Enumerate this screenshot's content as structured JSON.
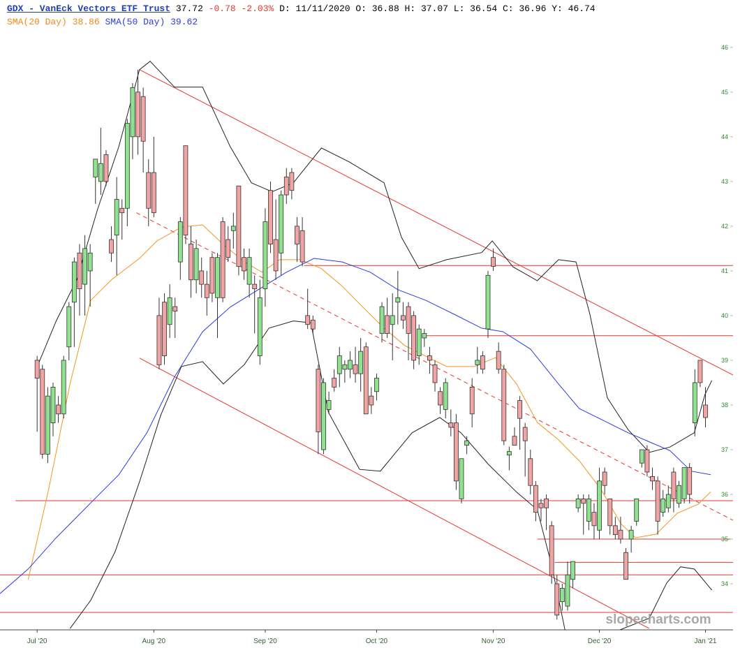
{
  "chart_data": {
    "type": "candlestick",
    "header": {
      "symbol": "GDX - VanEck Vectors ETF Trust",
      "price": "37.72",
      "change": "-0.78 -2.03%",
      "details": "D: 11/11/2020 O: 36.88 H: 37.07 L: 36.54 C: 36.96 Y: 46.74"
    },
    "watermark": "slopecharts.com",
    "up_color": "#8fe38f",
    "down_color": "#f2a3a3",
    "x": [
      0,
      1,
      2,
      3,
      4,
      5,
      6,
      7,
      8,
      9,
      10,
      11,
      12,
      13,
      14,
      15,
      16,
      17,
      18,
      19,
      20,
      21,
      22,
      23,
      24,
      25,
      26,
      27,
      28,
      29,
      30,
      31,
      32,
      33,
      34,
      35,
      36,
      37,
      38,
      39,
      40,
      41,
      42,
      43,
      44,
      45,
      46,
      47,
      48,
      49,
      50,
      51,
      52,
      53,
      54,
      55,
      56,
      57,
      58,
      59,
      60,
      61,
      62,
      63,
      64,
      65,
      66,
      67,
      68,
      69,
      70,
      71,
      72,
      73,
      74,
      75,
      76,
      77,
      78,
      79,
      80,
      81,
      82,
      83,
      84,
      85,
      86,
      87,
      88,
      89,
      90,
      91,
      92,
      93,
      94,
      95,
      96,
      97,
      98,
      99,
      100,
      101,
      102,
      103,
      104,
      105,
      106,
      107,
      108,
      109,
      110,
      111,
      112,
      113,
      114,
      115,
      116,
      117,
      118,
      119,
      120,
      121,
      122,
      123,
      124,
      125,
      126
    ],
    "open": [
      39.0,
      38.8,
      36.9,
      37.6,
      38.0,
      37.8,
      39.3,
      40.3,
      41.4,
      40.7,
      41.0,
      43.1,
      43.0,
      43.6,
      41.7,
      41.8,
      42.4,
      42.4,
      44.0,
      45.0,
      44.9,
      43.2,
      43.2,
      40.0,
      40.3,
      39.8,
      40.2,
      41.2,
      43.8,
      41.6,
      40.8,
      41.0,
      40.7,
      41.3,
      40.4,
      42.1,
      41.7,
      41.9,
      42.9,
      41.3,
      40.7,
      40.7,
      39.1,
      40.6,
      42.8,
      41.7,
      41.4,
      43.1,
      43.2,
      42.0,
      41.9,
      40.0,
      39.9,
      38.8,
      37.0,
      37.9,
      38.6,
      38.7,
      38.8,
      38.8,
      38.9,
      38.7,
      39.3,
      38.2,
      38.3,
      39.6,
      40.0,
      39.8,
      40.3,
      40.0,
      40.2,
      40.0,
      39.1,
      39.5,
      39.1,
      38.9,
      38.3,
      37.9,
      37.6,
      37.6,
      35.9,
      37.1,
      38.4,
      38.9,
      39.1,
      39.7,
      41.3,
      39.2,
      38.8,
      36.88,
      37.3,
      38.1,
      37.5,
      36.8,
      36.2,
      35.8,
      35.9,
      35.3,
      34.0,
      33.6,
      33.5,
      34.1,
      35.7,
      35.9,
      35.4,
      35.6,
      35.2,
      36.5,
      35.9,
      35.3,
      35.2,
      34.7,
      35.0,
      35.4,
      36.7,
      37.0,
      36.4,
      36.3,
      35.6,
      35.7,
      36.5,
      35.8,
      35.9,
      36.6,
      37.6,
      39.0,
      38.0
    ],
    "high": [
      39.1,
      38.9,
      38.4,
      38.5,
      38.2,
      39.1,
      40.3,
      41.3,
      41.6,
      41.8,
      41.6,
      43.5,
      44.2,
      43.7,
      42.0,
      43.1,
      42.6,
      44.4,
      45.2,
      45.5,
      45.1,
      43.5,
      44.0,
      40.4,
      40.5,
      40.7,
      40.4,
      42.2,
      43.8,
      42.0,
      41.7,
      41.3,
      41.0,
      41.4,
      41.4,
      42.2,
      42.0,
      42.3,
      42.9,
      41.5,
      41.5,
      40.9,
      40.8,
      42.4,
      43.0,
      42.6,
      42.8,
      43.3,
      43.3,
      42.2,
      42.2,
      40.6,
      40.0,
      38.9,
      38.6,
      38.3,
      38.8,
      39.3,
      39.0,
      39.2,
      39.3,
      39.5,
      39.4,
      38.4,
      38.7,
      40.3,
      40.4,
      40.5,
      41.0,
      40.3,
      40.3,
      40.1,
      39.8,
      39.7,
      39.3,
      39.0,
      38.4,
      38.6,
      37.9,
      37.8,
      36.8,
      37.3,
      38.6,
      39.3,
      39.2,
      41.0,
      41.5,
      39.4,
      38.9,
      37.07,
      37.5,
      38.2,
      37.6,
      37.0,
      36.3,
      35.9,
      36.0,
      35.4,
      34.2,
      34.0,
      34.5,
      34.5,
      36.0,
      36.0,
      36.0,
      35.8,
      36.6,
      36.6,
      35.9,
      35.5,
      35.5,
      34.8,
      35.3,
      35.9,
      37.0,
      37.1,
      36.6,
      36.4,
      36.1,
      36.2,
      36.6,
      36.3,
      36.6,
      36.7,
      38.8,
      39.0,
      38.4
    ],
    "low": [
      37.4,
      36.8,
      36.7,
      37.3,
      37.6,
      37.7,
      39.0,
      39.3,
      40.0,
      40.0,
      40.2,
      42.5,
      42.7,
      42.9,
      41.2,
      40.9,
      41.7,
      42.0,
      43.5,
      43.6,
      43.2,
      42.0,
      42.2,
      38.8,
      38.9,
      39.5,
      39.5,
      40.8,
      41.6,
      40.4,
      40.5,
      40.4,
      40.0,
      40.3,
      39.5,
      40.3,
      41.2,
      41.5,
      40.9,
      40.8,
      40.4,
      39.6,
      38.9,
      40.2,
      41.4,
      40.8,
      40.9,
      42.5,
      42.6,
      41.2,
      41.1,
      39.7,
      39.6,
      36.9,
      36.9,
      37.8,
      38.3,
      38.4,
      38.5,
      38.6,
      38.5,
      38.3,
      37.8,
      37.8,
      38.1,
      39.4,
      39.5,
      39.0,
      39.8,
      39.7,
      39.0,
      38.8,
      38.9,
      39.3,
      38.7,
      38.3,
      37.8,
      37.7,
      37.3,
      36.1,
      35.8,
      36.9,
      37.5,
      38.7,
      38.7,
      39.5,
      41.0,
      38.7,
      37.1,
      36.54,
      37.1,
      37.0,
      36.4,
      36.0,
      35.4,
      35.4,
      35.2,
      34.0,
      33.2,
      33.4,
      33.4,
      33.9,
      35.6,
      35.1,
      35.2,
      35.0,
      35.0,
      36.0,
      35.1,
      35.0,
      34.9,
      34.1,
      34.7,
      35.3,
      36.6,
      36.4,
      36.1,
      35.1,
      35.5,
      35.6,
      35.6,
      35.7,
      35.8,
      35.8,
      37.3,
      38.4,
      37.5
    ],
    "close": [
      38.6,
      36.9,
      38.2,
      38.4,
      37.8,
      39.0,
      40.2,
      41.2,
      40.6,
      41.5,
      41.4,
      43.5,
      43.4,
      43.0,
      41.4,
      42.6,
      42.3,
      44.3,
      45.1,
      44.0,
      43.9,
      42.4,
      42.3,
      38.9,
      39.1,
      40.4,
      40.1,
      42.1,
      41.8,
      40.8,
      41.5,
      40.7,
      40.4,
      40.5,
      41.3,
      40.4,
      41.3,
      42.0,
      41.1,
      41.0,
      41.3,
      40.6,
      40.4,
      42.1,
      41.6,
      41.0,
      42.7,
      42.7,
      42.8,
      41.6,
      41.2,
      39.8,
      39.7,
      37.4,
      38.5,
      38.1,
      38.4,
      39.1,
      38.9,
      39.0,
      38.7,
      39.2,
      37.8,
      38.0,
      38.6,
      40.2,
      39.6,
      40.0,
      40.4,
      39.9,
      39.6,
      39.0,
      39.7,
      39.6,
      39.0,
      38.5,
      38.0,
      38.5,
      37.5,
      36.3,
      36.8,
      37.2,
      37.8,
      39.0,
      38.8,
      40.9,
      41.1,
      38.8,
      37.2,
      36.96,
      37.1,
      37.7,
      37.2,
      36.2,
      35.6,
      35.7,
      35.7,
      34.2,
      33.3,
      33.9,
      34.2,
      34.5,
      35.9,
      35.8,
      35.9,
      35.3,
      36.3,
      36.2,
      35.3,
      35.1,
      35.0,
      34.1,
      35.2,
      35.9,
      37.0,
      36.5,
      36.3,
      35.4,
      35.9,
      36.0,
      35.9,
      36.2,
      36.6,
      36.0,
      38.5,
      38.5,
      37.72
    ],
    "indicators": [
      {
        "name": "SMA(20 Day)",
        "last": 38.86,
        "color": "#f7931e",
        "x": [
          -1.7,
          2.2,
          6.2,
          10.1,
          14.1,
          19.3,
          22.6,
          27.2,
          31.2,
          35.1,
          39.1,
          42.4,
          45.7,
          49.6,
          53.6,
          57.5,
          61.4,
          65.4,
          69.3,
          73.3,
          77.2,
          82.5,
          86.4,
          90.4,
          94.3,
          98.3,
          102.2,
          106.2,
          110.1,
          112.8,
          116.7,
          120.7,
          124.6,
          127.0
        ],
        "y": [
          34.09,
          36.13,
          38.47,
          40.34,
          40.81,
          41.28,
          41.67,
          41.98,
          42.03,
          41.59,
          41.2,
          40.97,
          41.25,
          41.25,
          41.05,
          40.66,
          40.19,
          39.72,
          39.33,
          39.09,
          38.86,
          38.86,
          39.06,
          38.47,
          37.61,
          37.22,
          36.75,
          36.13,
          35.34,
          35.03,
          35.11,
          35.58,
          35.78,
          36.06
        ]
      },
      {
        "name": "SMA(50 Day)",
        "last": 39.62,
        "color": "#2b3de0",
        "x": [
          -7.0,
          -1.7,
          3.6,
          10.1,
          15.4,
          20.7,
          25.9,
          31.2,
          36.4,
          41.7,
          47.0,
          52.2,
          57.5,
          62.8,
          68.0,
          73.3,
          78.6,
          83.8,
          87.8,
          93.0,
          98.3,
          102.2,
          107.5,
          111.4,
          116.1,
          119.3,
          123.3,
          127.0
        ],
        "y": [
          33.78,
          34.33,
          35.03,
          35.81,
          36.44,
          37.38,
          38.63,
          39.64,
          40.19,
          40.58,
          40.97,
          41.28,
          41.2,
          40.97,
          40.58,
          40.34,
          40.03,
          39.72,
          39.64,
          39.25,
          38.47,
          37.92,
          37.61,
          37.38,
          37.14,
          36.98,
          36.52,
          36.44
        ]
      }
    ],
    "bands": [
      {
        "color": "#222222",
        "x": [
          0.3,
          3.6,
          7.5,
          11.4,
          15.4,
          19.3,
          21.3,
          25.9,
          31.2,
          36.4,
          40.4,
          44.3,
          48.3,
          53.6,
          58.8,
          65.4,
          68.7,
          72.0,
          77.2,
          83.8,
          85.8,
          89.7,
          94.3,
          98.3,
          101.6,
          104.2,
          107.5,
          111.4,
          115.4,
          119.3,
          123.9,
          125.9,
          127.2
        ],
        "y": [
          38.94,
          39.88,
          40.81,
          42.38,
          43.78,
          45.5,
          45.69,
          45.11,
          45.11,
          43.78,
          42.97,
          42.77,
          42.97,
          43.75,
          43.44,
          42.97,
          41.75,
          41.05,
          41.25,
          41.41,
          41.67,
          41.09,
          40.78,
          41.25,
          41.2,
          40.03,
          38.16,
          37.45,
          36.94,
          37.06,
          37.38,
          38.23,
          38.55
        ]
      },
      {
        "color": "#222222",
        "x": [
          6.2,
          10.1,
          14.7,
          19.3,
          23.3,
          27.2,
          31.2,
          35.1,
          39.1,
          43.7,
          48.3,
          51.6,
          54.9,
          60.8,
          64.7,
          70.7,
          75.9,
          79.9,
          85.1,
          90.4,
          94.3,
          97.0,
          99.6,
          108.8,
          115.4,
          118.7,
          121.3,
          123.9,
          127.2
        ],
        "y": [
          33.0,
          33.63,
          34.72,
          36.28,
          37.77,
          38.86,
          38.97,
          38.47,
          38.91,
          39.72,
          39.88,
          39.84,
          37.84,
          36.56,
          36.52,
          37.38,
          37.72,
          37.38,
          36.67,
          36.05,
          35.66,
          34.41,
          32.92,
          32.92,
          33.23,
          34.02,
          34.38,
          34.33,
          33.86
        ]
      }
    ],
    "levels": [
      {
        "value": 41.12,
        "from": 50.3
      },
      {
        "value": 39.55,
        "from": 73.3
      },
      {
        "value": 35.86,
        "from": -4.1
      },
      {
        "value": 35.0,
        "from": 94.3
      },
      {
        "value": 34.48,
        "from": 97.6
      },
      {
        "value": 34.2,
        "from": -7
      },
      {
        "value": 33.36,
        "from": -7
      }
    ],
    "level_color": "#e8362f",
    "trendlines": [
      {
        "x": [
          19.3,
          131.2
        ],
        "y": [
          45.5,
          38.67
        ],
        "dashed": false
      },
      {
        "x": [
          19.3,
          115.4
        ],
        "y": [
          39.05,
          33.0
        ],
        "dashed": false
      },
      {
        "x": [
          18.7,
          131.2
        ],
        "y": [
          42.3,
          35.42
        ],
        "dashed": true
      }
    ],
    "xlim": [
      -7,
      131.2
    ],
    "ylim": [
      32.97,
      46.2
    ],
    "xticks": [
      {
        "value": 0,
        "label": "Jul '20"
      },
      {
        "value": 22,
        "label": "Aug '20"
      },
      {
        "value": 43,
        "label": "Sep '20"
      },
      {
        "value": 64,
        "label": "Oct '20"
      },
      {
        "value": 86,
        "label": "Nov '20"
      },
      {
        "value": 106,
        "label": "Dec '20"
      },
      {
        "value": 126,
        "label": "Jan '21"
      }
    ],
    "yticks": [
      34,
      35,
      36,
      37,
      38,
      39,
      40,
      41,
      42,
      43,
      44,
      45,
      46
    ]
  }
}
